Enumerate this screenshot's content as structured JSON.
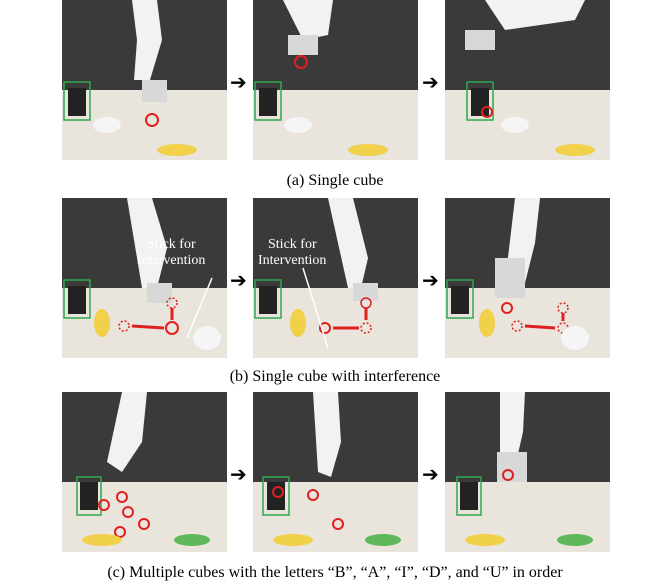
{
  "figure": {
    "panels": [
      {
        "caption": "(a) Single cube",
        "frames": [
          {
            "annotation": ""
          },
          {
            "annotation": ""
          },
          {
            "annotation": ""
          }
        ]
      },
      {
        "caption": "(b) Single cube with interference",
        "frames": [
          {
            "annotation_line1": "Stick for",
            "annotation_line2": "Intervention"
          },
          {
            "annotation_line1": "Stick for",
            "annotation_line2": "Intervention"
          },
          {
            "annotation_line1": "",
            "annotation_line2": ""
          }
        ]
      },
      {
        "caption": "(c) Multiple cubes with the letters “B”, “A”, “I”, “D”, and “U” in order",
        "frames": [
          {
            "annotation": ""
          },
          {
            "annotation": ""
          },
          {
            "annotation": ""
          }
        ]
      }
    ],
    "arrow_glyph": "➔",
    "colors": {
      "highlight_circle": "#e02020",
      "bin_box": "#2fa84f",
      "table": "#e9e4dc",
      "wall": "#3a3a3a"
    }
  }
}
